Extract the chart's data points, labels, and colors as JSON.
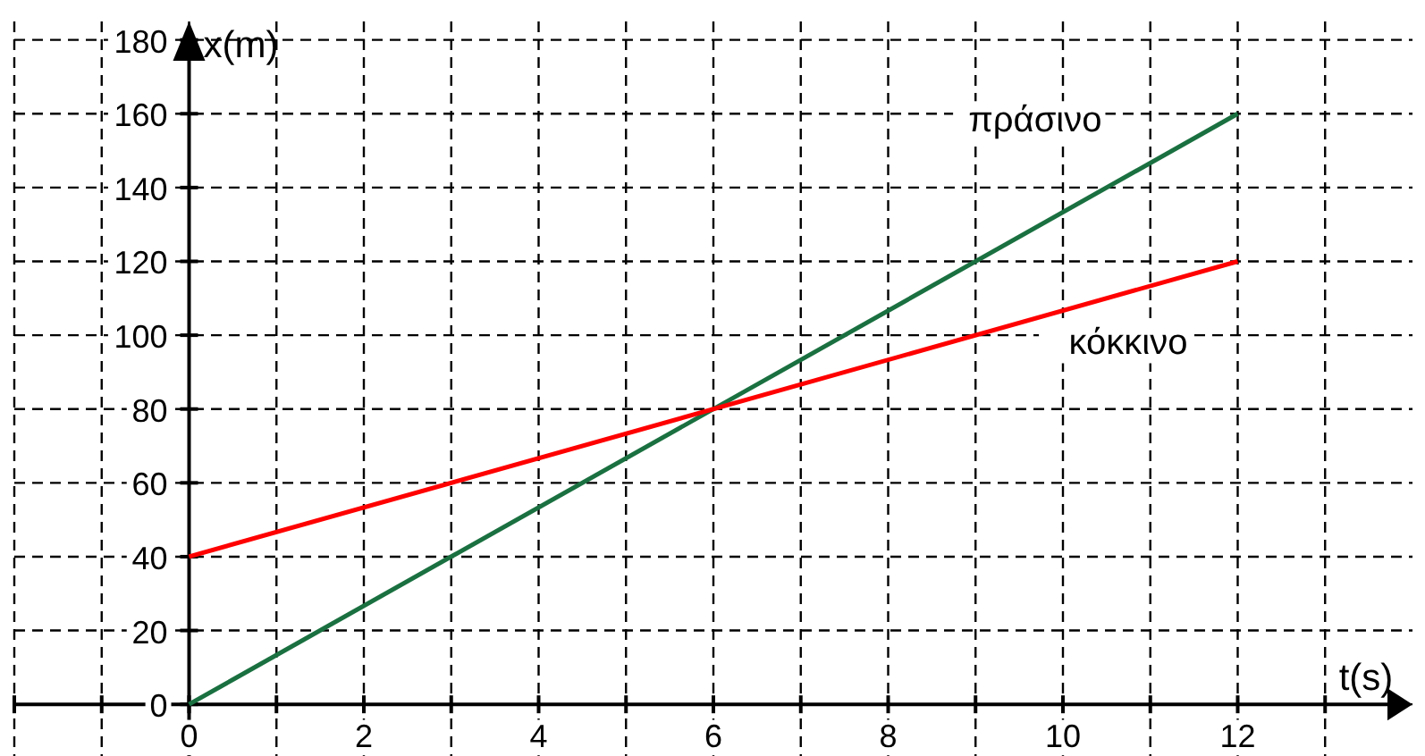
{
  "chart_data": {
    "type": "line",
    "xlabel": "t(s)",
    "ylabel": "x(m)",
    "x": [
      0,
      12
    ],
    "series": [
      {
        "name": "πράσινο",
        "color": "#1a7040",
        "values": [
          0,
          160
        ]
      },
      {
        "name": "κόκκινο",
        "color": "#ff0000",
        "values": [
          40,
          120
        ]
      }
    ],
    "xlim": [
      -2,
      14
    ],
    "ylim": [
      -14,
      185
    ],
    "xticks": [
      {
        "value": -2,
        "label": null
      },
      {
        "value": -1,
        "label": null
      },
      0,
      {
        "value": 1,
        "label": null
      },
      2,
      {
        "value": 3,
        "label": null
      },
      4,
      {
        "value": 5,
        "label": null
      },
      6,
      {
        "value": 7,
        "label": null
      },
      8,
      {
        "value": 9,
        "label": null
      },
      10,
      {
        "value": 11,
        "label": null
      },
      12,
      {
        "value": 13,
        "label": null
      }
    ],
    "yticks": [
      0,
      20,
      40,
      60,
      80,
      100,
      120,
      140,
      160,
      180
    ],
    "grid": true,
    "marker": "none",
    "line_style": "solid"
  }
}
